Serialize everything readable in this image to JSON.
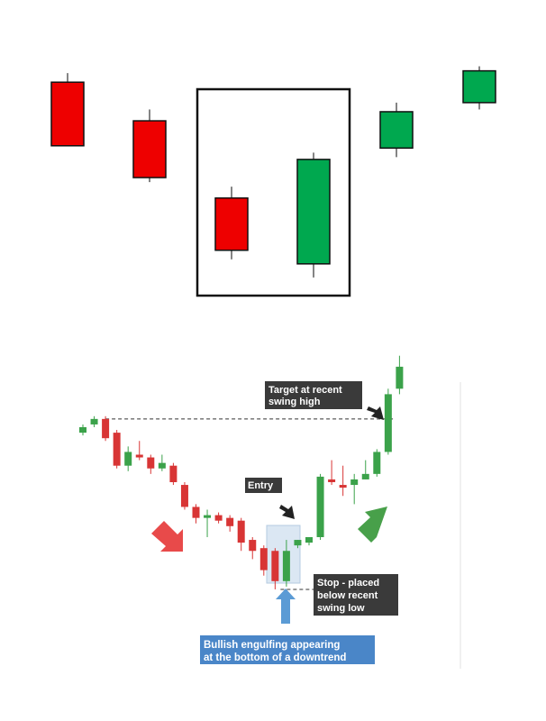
{
  "colors": {
    "bear": "#ee0000",
    "bull": "#00a84f",
    "bear_small": "#d83535",
    "bull_small": "#3ba24a",
    "wick": "#555555",
    "label_bg": "#3a3a3a",
    "callout_bg": "#4a86c8",
    "arrow_down": "#e84a4a",
    "arrow_up": "#48a04a",
    "arrow_blue": "#5b9bd5"
  },
  "chart_data": [
    {
      "type": "candlestick",
      "series": [
        {
          "direction": "bearish",
          "open": 9.0,
          "close": 6.2,
          "high": 9.4,
          "low": 6.2
        },
        {
          "direction": "bearish",
          "open": 7.3,
          "close": 4.8,
          "high": 7.8,
          "low": 4.6
        },
        {
          "direction": "bearish",
          "open": 3.9,
          "close": 1.6,
          "high": 4.4,
          "low": 1.2
        },
        {
          "direction": "bullish",
          "open": 1.0,
          "close": 5.6,
          "high": 5.9,
          "low": 0.4
        },
        {
          "direction": "bullish",
          "open": 6.1,
          "close": 7.7,
          "high": 8.1,
          "low": 5.7
        },
        {
          "direction": "bullish",
          "open": 8.1,
          "close": 9.5,
          "high": 9.7,
          "low": 7.8
        }
      ],
      "highlight": {
        "from_index": 2,
        "to_index": 3,
        "style": "box"
      }
    },
    {
      "type": "candlestick",
      "series": [
        {
          "o": 3.8,
          "c": 4.0,
          "h": 4.1,
          "l": 3.7
        },
        {
          "o": 4.1,
          "c": 4.3,
          "h": 4.4,
          "l": 4.0
        },
        {
          "o": 4.3,
          "c": 3.6,
          "h": 4.4,
          "l": 3.5
        },
        {
          "o": 3.8,
          "c": 2.6,
          "h": 3.9,
          "l": 2.5
        },
        {
          "o": 2.6,
          "c": 3.1,
          "h": 3.3,
          "l": 2.4
        },
        {
          "o": 3.0,
          "c": 2.9,
          "h": 3.5,
          "l": 2.8
        },
        {
          "o": 2.9,
          "c": 2.5,
          "h": 3.0,
          "l": 2.3
        },
        {
          "o": 2.5,
          "c": 2.7,
          "h": 3.0,
          "l": 2.4
        },
        {
          "o": 2.6,
          "c": 2.0,
          "h": 2.7,
          "l": 1.9
        },
        {
          "o": 1.9,
          "c": 1.1,
          "h": 2.0,
          "l": 1.0
        },
        {
          "o": 1.1,
          "c": 0.7,
          "h": 1.2,
          "l": 0.5
        },
        {
          "o": 0.7,
          "c": 0.8,
          "h": 1.0,
          "l": 0.0
        },
        {
          "o": 0.8,
          "c": 0.6,
          "h": 0.9,
          "l": 0.5
        },
        {
          "o": 0.7,
          "c": 0.4,
          "h": 0.8,
          "l": 0.2
        },
        {
          "o": 0.6,
          "c": -0.2,
          "h": 0.7,
          "l": -0.5
        },
        {
          "o": -0.1,
          "c": -0.5,
          "h": 0.0,
          "l": -0.8
        },
        {
          "o": -0.4,
          "c": -1.2,
          "h": -0.3,
          "l": -1.4
        },
        {
          "o": -0.5,
          "c": -1.6,
          "h": -0.4,
          "l": -1.9
        },
        {
          "o": -1.6,
          "c": -0.5,
          "h": -0.1,
          "l": -1.8
        },
        {
          "o": -0.3,
          "c": -0.1,
          "h": -0.1,
          "l": -0.4
        },
        {
          "o": -0.2,
          "c": 0.0,
          "h": 0.0,
          "l": -0.3
        },
        {
          "o": 0.0,
          "c": 2.2,
          "h": 2.3,
          "l": -0.1
        },
        {
          "o": 2.1,
          "c": 2.0,
          "h": 2.8,
          "l": 1.9
        },
        {
          "o": 1.9,
          "c": 1.8,
          "h": 2.6,
          "l": 1.5
        },
        {
          "o": 1.9,
          "c": 2.1,
          "h": 2.3,
          "l": 1.2
        },
        {
          "o": 2.1,
          "c": 2.3,
          "h": 2.8,
          "l": 2.1
        },
        {
          "o": 2.3,
          "c": 3.1,
          "h": 3.2,
          "l": 2.2
        },
        {
          "o": 3.1,
          "c": 5.2,
          "h": 5.4,
          "l": 3.0
        },
        {
          "o": 5.4,
          "c": 6.2,
          "h": 6.6,
          "l": 5.2
        }
      ],
      "engulfing_pair": [
        17,
        18
      ],
      "entry_index": 19,
      "swing_high_level": 4.3,
      "stop_level": -1.9
    }
  ],
  "annotations": {
    "target_line1": "Target at recent",
    "target_line2": "swing high",
    "entry": "Entry",
    "stop_line1": "Stop - placed",
    "stop_line2": "below recent",
    "stop_line3": "swing low",
    "callout_line1": "Bullish engulfing appearing",
    "callout_line2": "at the bottom of a downtrend"
  }
}
